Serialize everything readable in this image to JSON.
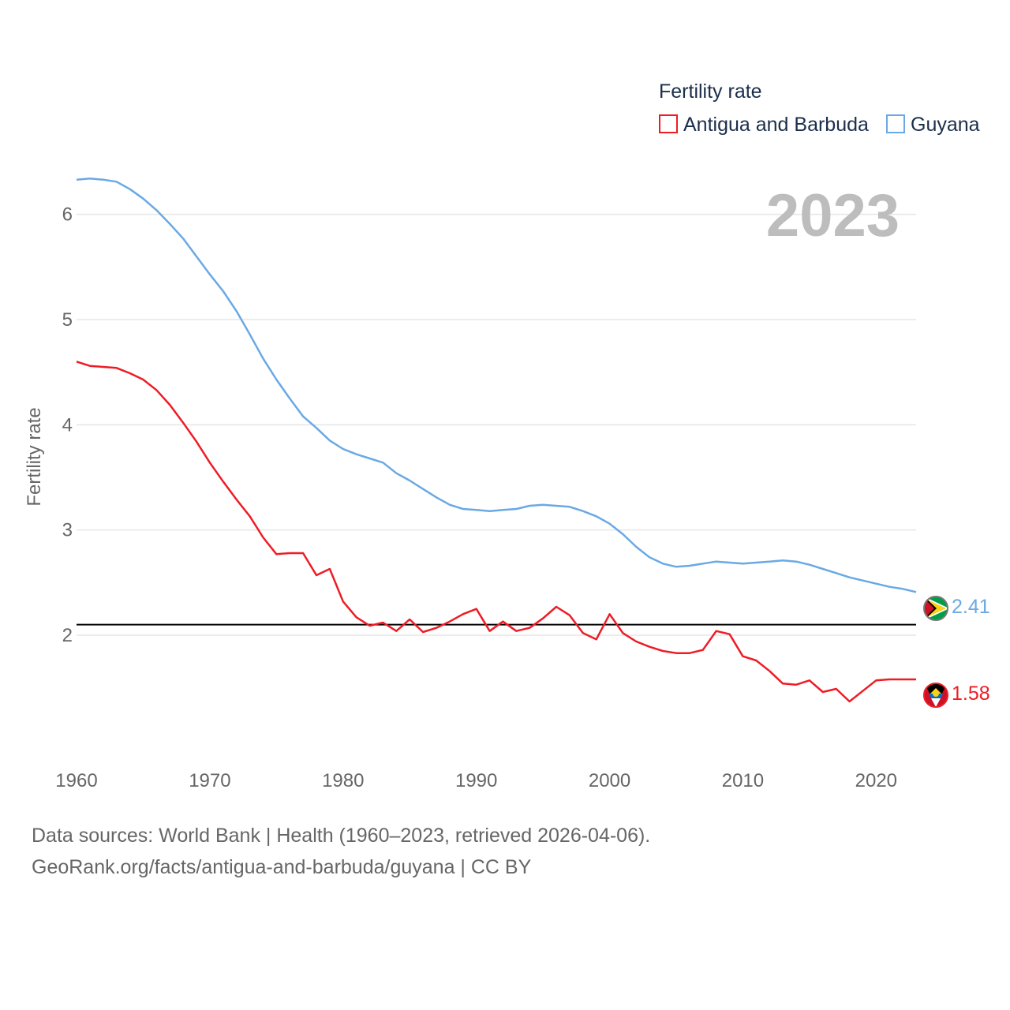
{
  "chart_data": {
    "type": "line",
    "title": "Fertility rate",
    "ylabel": "Fertility rate",
    "xlabel": "",
    "current_year": "2023",
    "reference_line": 2.1,
    "xlim": [
      1960,
      2023
    ],
    "ylim": [
      0.95,
      6.8
    ],
    "x_ticks": [
      1960,
      1970,
      1980,
      1990,
      2000,
      2010,
      2020
    ],
    "y_ticks": [
      2,
      3,
      4,
      5,
      6
    ],
    "legend_position": "top-right",
    "years": [
      1960,
      1961,
      1962,
      1963,
      1964,
      1965,
      1966,
      1967,
      1968,
      1969,
      1970,
      1971,
      1972,
      1973,
      1974,
      1975,
      1976,
      1977,
      1978,
      1979,
      1980,
      1981,
      1982,
      1983,
      1984,
      1985,
      1986,
      1987,
      1988,
      1989,
      1990,
      1991,
      1992,
      1993,
      1994,
      1995,
      1996,
      1997,
      1998,
      1999,
      2000,
      2001,
      2002,
      2003,
      2004,
      2005,
      2006,
      2007,
      2008,
      2009,
      2010,
      2011,
      2012,
      2013,
      2014,
      2015,
      2016,
      2017,
      2018,
      2019,
      2020,
      2021,
      2022,
      2023
    ],
    "series": [
      {
        "name": "Antigua and Barbuda",
        "color": "#ee1c25",
        "end_label": "1.58",
        "values": [
          4.6,
          4.56,
          4.55,
          4.54,
          4.49,
          4.43,
          4.33,
          4.19,
          4.02,
          3.84,
          3.64,
          3.46,
          3.29,
          3.13,
          2.93,
          2.77,
          2.78,
          2.78,
          2.57,
          2.63,
          2.32,
          2.17,
          2.09,
          2.12,
          2.04,
          2.15,
          2.03,
          2.07,
          2.13,
          2.2,
          2.25,
          2.04,
          2.13,
          2.04,
          2.07,
          2.16,
          2.27,
          2.19,
          2.02,
          1.96,
          2.2,
          2.02,
          1.94,
          1.89,
          1.85,
          1.83,
          1.83,
          1.86,
          2.04,
          2.01,
          1.8,
          1.76,
          1.66,
          1.54,
          1.53,
          1.57,
          1.46,
          1.49,
          1.37,
          1.47,
          1.57,
          1.58,
          1.58,
          1.58
        ]
      },
      {
        "name": "Guyana",
        "color": "#6aa9e4",
        "end_label": "2.41",
        "values": [
          6.33,
          6.34,
          6.33,
          6.31,
          6.24,
          6.15,
          6.04,
          5.91,
          5.77,
          5.6,
          5.43,
          5.27,
          5.08,
          4.86,
          4.63,
          4.43,
          4.25,
          4.08,
          3.97,
          3.85,
          3.77,
          3.72,
          3.68,
          3.64,
          3.54,
          3.47,
          3.39,
          3.31,
          3.24,
          3.2,
          3.19,
          3.18,
          3.19,
          3.2,
          3.23,
          3.24,
          3.23,
          3.22,
          3.18,
          3.13,
          3.06,
          2.96,
          2.84,
          2.74,
          2.68,
          2.65,
          2.66,
          2.68,
          2.7,
          2.69,
          2.68,
          2.69,
          2.7,
          2.71,
          2.7,
          2.67,
          2.63,
          2.59,
          2.55,
          2.52,
          2.49,
          2.46,
          2.44,
          2.41
        ]
      }
    ]
  },
  "footer": {
    "sources": "Data sources: World Bank | Health (1960–2023, retrieved 2026-04-06).",
    "url": "GeoRank.org/facts/antigua-and-barbuda/guyana | CC BY"
  }
}
